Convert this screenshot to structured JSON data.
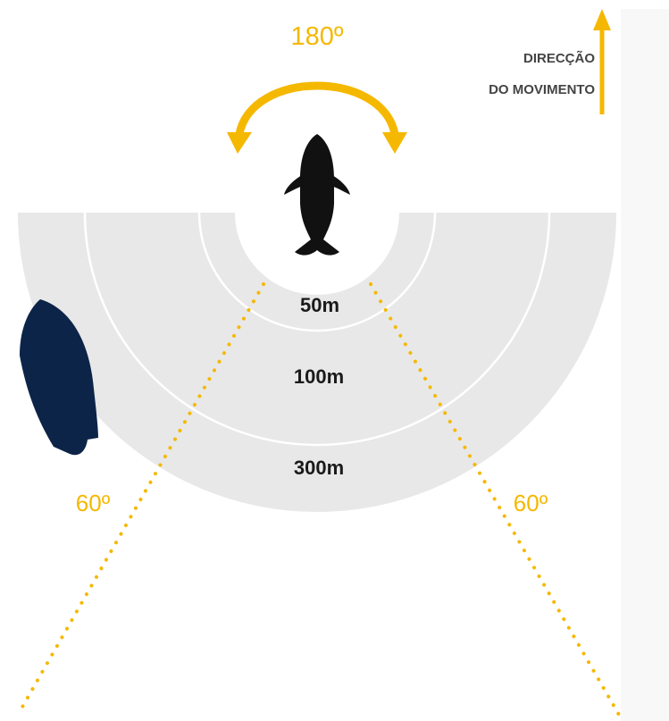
{
  "direction": {
    "line1": "DIRECÇÃO",
    "line2": "DO MOVIMENTO"
  },
  "rotation_angle": "180º",
  "zones": {
    "inner": "50m",
    "middle": "100m",
    "outer": "300m"
  },
  "approach_angles": {
    "left": "60º",
    "right": "60º"
  },
  "colors": {
    "zone_fill": "#e8e8e8",
    "ring_line": "#ffffff",
    "accent": "#f5b800",
    "whale": "#111111",
    "boat": "#0c2447"
  },
  "icons": {
    "whale": "whale-icon",
    "boat": "boat-icon",
    "direction_arrow": "arrow-up-icon",
    "rotation_arrow": "curved-double-arrow-icon"
  }
}
